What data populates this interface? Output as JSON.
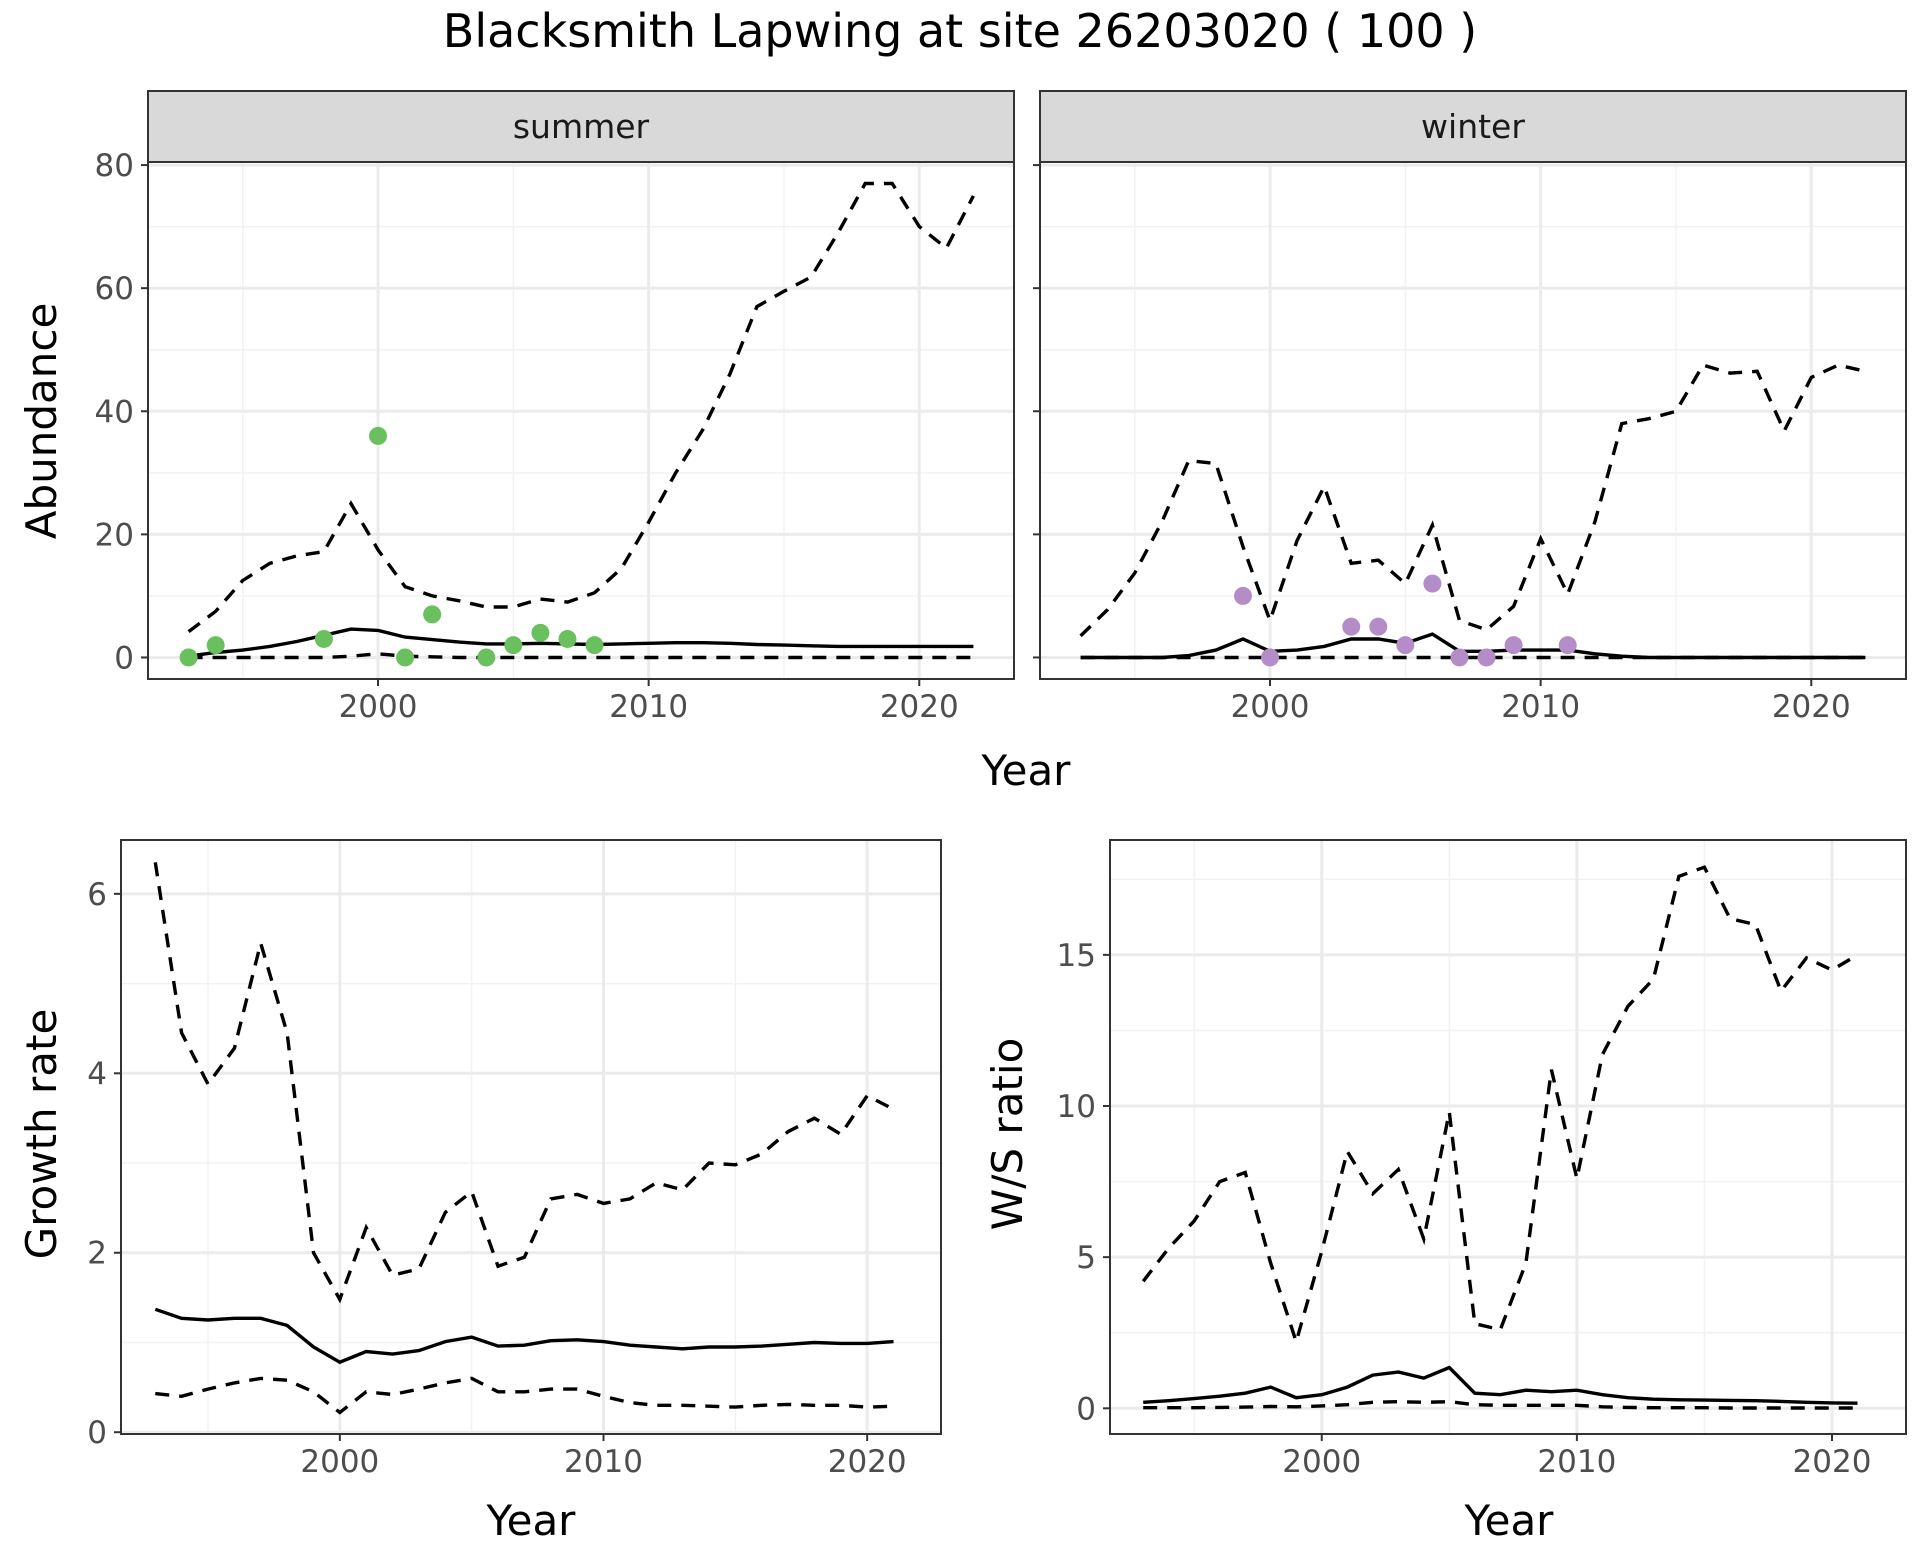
{
  "title": "Blacksmith Lapwing at site 26203020 ( 100 )",
  "colors": {
    "summer_points": "#6abf5e",
    "winter_points": "#b48cc8",
    "lines": "#000000"
  },
  "chart_data": [
    {
      "type": "line",
      "facet": "summer",
      "xlabel": "Year",
      "ylabel": "Abundance",
      "xlim": [
        1991.5,
        2023.5
      ],
      "ylim": [
        -3.5,
        80.5
      ],
      "xticks": [
        2000,
        2010,
        2020
      ],
      "yticks": [
        0,
        20,
        40,
        60,
        80
      ],
      "grid": true,
      "series": [
        {
          "style": "solid",
          "x": [
            1993,
            1994,
            1995,
            1996,
            1997,
            1998,
            1999,
            2000,
            2001,
            2002,
            2003,
            2004,
            2005,
            2006,
            2007,
            2008,
            2009,
            2010,
            2011,
            2012,
            2013,
            2014,
            2015,
            2016,
            2017,
            2018,
            2019,
            2020,
            2021,
            2022
          ],
          "values": [
            0.2,
            0.8,
            1.2,
            1.8,
            2.6,
            3.6,
            4.6,
            4.4,
            3.3,
            2.9,
            2.5,
            2.2,
            2.2,
            2.3,
            2.2,
            2.1,
            2.2,
            2.3,
            2.4,
            2.4,
            2.3,
            2.1,
            2.0,
            1.9,
            1.8,
            1.8,
            1.8,
            1.8,
            1.8,
            1.8
          ]
        },
        {
          "style": "dashed",
          "x": [
            1993,
            1994,
            1995,
            1996,
            1997,
            1998,
            1999,
            2000,
            2001,
            2002,
            2003,
            2004,
            2005,
            2006,
            2007,
            2008,
            2009,
            2010,
            2011,
            2012,
            2013,
            2014,
            2015,
            2016,
            2017,
            2018,
            2019,
            2020,
            2021,
            2022
          ],
          "values": [
            4.2,
            7.5,
            12.5,
            15.3,
            16.5,
            17.2,
            25.0,
            17.5,
            11.5,
            10.0,
            9.2,
            8.2,
            8.2,
            9.5,
            9.0,
            10.5,
            14.5,
            22.0,
            30.0,
            37.0,
            46.0,
            57.0,
            59.5,
            61.8,
            69.0,
            77.0,
            77.0,
            70.0,
            66.5,
            75.0
          ]
        },
        {
          "style": "dashed",
          "x": [
            1993,
            1994,
            1995,
            1996,
            1997,
            1998,
            1999,
            2000,
            2001,
            2002,
            2003,
            2004,
            2005,
            2006,
            2007,
            2008,
            2009,
            2010,
            2011,
            2012,
            2013,
            2014,
            2015,
            2016,
            2017,
            2018,
            2019,
            2020,
            2021,
            2022
          ],
          "values": [
            0,
            0,
            0,
            0,
            0,
            0,
            0.2,
            0.6,
            0.2,
            0.1,
            0,
            0,
            0,
            0,
            0,
            0,
            0,
            0,
            0,
            0,
            0,
            0,
            0,
            0,
            0,
            0,
            0,
            0,
            0,
            0
          ]
        }
      ],
      "points": {
        "x": [
          1993,
          1994,
          1998,
          2000,
          2001,
          2002,
          2004,
          2005,
          2006,
          2007,
          2008
        ],
        "values": [
          0,
          2,
          3,
          36,
          0,
          7,
          0,
          2,
          4,
          3,
          2
        ]
      }
    },
    {
      "type": "line",
      "facet": "winter",
      "xlabel": "Year",
      "ylabel": "Abundance",
      "xlim": [
        1991.5,
        2023.5
      ],
      "ylim": [
        -3.5,
        80.5
      ],
      "xticks": [
        2000,
        2010,
        2020
      ],
      "yticks": [
        0,
        20,
        40,
        60,
        80
      ],
      "grid": true,
      "series": [
        {
          "style": "solid",
          "x": [
            1993,
            1994,
            1995,
            1996,
            1997,
            1998,
            1999,
            2000,
            2001,
            2002,
            2003,
            2004,
            2005,
            2006,
            2007,
            2008,
            2009,
            2010,
            2011,
            2012,
            2013,
            2014,
            2015,
            2016,
            2017,
            2018,
            2019,
            2020,
            2021,
            2022
          ],
          "values": [
            0,
            0,
            0,
            0,
            0.3,
            1.2,
            3.0,
            1.0,
            1.2,
            1.8,
            3.0,
            3.0,
            2.3,
            3.8,
            1.0,
            1.0,
            1.2,
            1.2,
            1.2,
            0.6,
            0.2,
            0,
            0,
            0,
            0,
            0,
            0,
            0,
            0,
            0
          ]
        },
        {
          "style": "dashed",
          "x": [
            1993,
            1994,
            1995,
            1996,
            1997,
            1998,
            1999,
            2000,
            2001,
            2002,
            2003,
            2004,
            2005,
            2006,
            2007,
            2008,
            2009,
            2010,
            2011,
            2012,
            2013,
            2014,
            2015,
            2016,
            2017,
            2018,
            2019,
            2020,
            2021,
            2022
          ],
          "values": [
            3.5,
            7.8,
            13.7,
            22.0,
            32.0,
            31.5,
            18.0,
            6.0,
            19.0,
            27.8,
            15.3,
            15.8,
            12.0,
            21.5,
            6.0,
            4.5,
            8.3,
            19.3,
            10.3,
            22.0,
            38.0,
            38.8,
            40.0,
            47.5,
            46.2,
            46.5,
            36.8,
            45.5,
            47.5,
            46.5
          ]
        },
        {
          "style": "dashed",
          "x": [
            1993,
            1994,
            1995,
            1996,
            1997,
            1998,
            1999,
            2000,
            2001,
            2002,
            2003,
            2004,
            2005,
            2006,
            2007,
            2008,
            2009,
            2010,
            2011,
            2012,
            2013,
            2014,
            2015,
            2016,
            2017,
            2018,
            2019,
            2020,
            2021,
            2022
          ],
          "values": [
            0,
            0,
            0,
            0,
            0,
            0,
            0,
            0,
            0,
            0,
            0,
            0,
            0,
            0,
            0,
            0,
            0,
            0,
            0,
            0,
            0,
            0,
            0,
            0,
            0,
            0,
            0,
            0,
            0,
            0
          ]
        }
      ],
      "points": {
        "x": [
          1999,
          2000,
          2003,
          2004,
          2005,
          2006,
          2007,
          2008,
          2009,
          2011
        ],
        "values": [
          10,
          0,
          5,
          5,
          2,
          12,
          0,
          0,
          2,
          2
        ]
      }
    },
    {
      "type": "line",
      "xlabel": "Year",
      "ylabel": "Growth rate",
      "xlim": [
        1991.7,
        2022.8
      ],
      "ylim": [
        -0.02,
        6.6
      ],
      "xticks": [
        2000,
        2010,
        2020
      ],
      "yticks": [
        0,
        2,
        4,
        6
      ],
      "grid": true,
      "series": [
        {
          "style": "solid",
          "x": [
            1993,
            1994,
            1995,
            1996,
            1997,
            1998,
            1999,
            2000,
            2001,
            2002,
            2003,
            2004,
            2005,
            2006,
            2007,
            2008,
            2009,
            2010,
            2011,
            2012,
            2013,
            2014,
            2015,
            2016,
            2017,
            2018,
            2019,
            2020,
            2021
          ],
          "values": [
            1.37,
            1.27,
            1.25,
            1.27,
            1.27,
            1.19,
            0.95,
            0.78,
            0.9,
            0.87,
            0.91,
            1.01,
            1.06,
            0.96,
            0.97,
            1.02,
            1.03,
            1.01,
            0.97,
            0.95,
            0.93,
            0.95,
            0.95,
            0.96,
            0.98,
            1.0,
            0.99,
            0.99,
            1.01
          ]
        },
        {
          "style": "dashed",
          "x": [
            1993,
            1994,
            1995,
            1996,
            1997,
            1998,
            1999,
            2000,
            2001,
            2002,
            2003,
            2004,
            2005,
            2006,
            2007,
            2008,
            2009,
            2010,
            2011,
            2012,
            2013,
            2014,
            2015,
            2016,
            2017,
            2018,
            2019,
            2020,
            2021
          ],
          "values": [
            6.35,
            4.45,
            3.88,
            4.28,
            5.45,
            4.45,
            2.0,
            1.48,
            2.28,
            1.75,
            1.82,
            2.45,
            2.68,
            1.85,
            1.95,
            2.6,
            2.65,
            2.55,
            2.6,
            2.78,
            2.7,
            3.0,
            2.98,
            3.1,
            3.35,
            3.5,
            3.32,
            3.75,
            3.6
          ]
        },
        {
          "style": "dashed",
          "x": [
            1993,
            1994,
            1995,
            1996,
            1997,
            1998,
            1999,
            2000,
            2001,
            2002,
            2003,
            2004,
            2005,
            2006,
            2007,
            2008,
            2009,
            2010,
            2011,
            2012,
            2013,
            2014,
            2015,
            2016,
            2017,
            2018,
            2019,
            2020,
            2021
          ],
          "values": [
            0.43,
            0.4,
            0.48,
            0.55,
            0.6,
            0.58,
            0.45,
            0.22,
            0.45,
            0.42,
            0.48,
            0.55,
            0.6,
            0.45,
            0.45,
            0.48,
            0.48,
            0.4,
            0.33,
            0.3,
            0.3,
            0.29,
            0.28,
            0.3,
            0.31,
            0.3,
            0.3,
            0.28,
            0.29
          ]
        }
      ]
    },
    {
      "type": "line",
      "xlabel": "Year",
      "ylabel": "W/S ratio",
      "xlim": [
        1991.7,
        2022.9
      ],
      "ylim": [
        -0.85,
        18.8
      ],
      "xticks": [
        2000,
        2010,
        2020
      ],
      "yticks": [
        0,
        5,
        10,
        15
      ],
      "grid": true,
      "series": [
        {
          "style": "solid",
          "x": [
            1993,
            1994,
            1995,
            1996,
            1997,
            1998,
            1999,
            2000,
            2001,
            2002,
            2003,
            2004,
            2005,
            2006,
            2007,
            2008,
            2009,
            2010,
            2011,
            2012,
            2013,
            2014,
            2015,
            2016,
            2017,
            2018,
            2019,
            2020,
            2021
          ],
          "values": [
            0.2,
            0.25,
            0.32,
            0.4,
            0.5,
            0.7,
            0.35,
            0.45,
            0.7,
            1.1,
            1.2,
            1.0,
            1.35,
            0.5,
            0.45,
            0.6,
            0.55,
            0.6,
            0.45,
            0.35,
            0.3,
            0.28,
            0.27,
            0.26,
            0.25,
            0.23,
            0.2,
            0.18,
            0.17
          ]
        },
        {
          "style": "dashed",
          "x": [
            1993,
            1994,
            1995,
            1996,
            1997,
            1998,
            1999,
            2000,
            2001,
            2002,
            2003,
            2004,
            2005,
            2006,
            2007,
            2008,
            2009,
            2010,
            2011,
            2012,
            2013,
            2014,
            2015,
            2016,
            2017,
            2018,
            2019,
            2020,
            2021
          ],
          "values": [
            4.2,
            5.3,
            6.2,
            7.5,
            7.8,
            4.8,
            2.2,
            5.2,
            8.5,
            7.1,
            7.9,
            5.6,
            9.8,
            2.8,
            2.6,
            4.8,
            11.2,
            7.6,
            11.7,
            13.3,
            14.2,
            17.6,
            17.9,
            16.2,
            16.0,
            13.8,
            14.9,
            14.5,
            15.0
          ]
        },
        {
          "style": "dashed",
          "x": [
            1993,
            1994,
            1995,
            1996,
            1997,
            1998,
            1999,
            2000,
            2001,
            2002,
            2003,
            2004,
            2005,
            2006,
            2007,
            2008,
            2009,
            2010,
            2011,
            2012,
            2013,
            2014,
            2015,
            2016,
            2017,
            2018,
            2019,
            2020,
            2021
          ],
          "values": [
            0.02,
            0.02,
            0.02,
            0.03,
            0.04,
            0.06,
            0.05,
            0.08,
            0.12,
            0.2,
            0.22,
            0.2,
            0.22,
            0.12,
            0.1,
            0.1,
            0.1,
            0.1,
            0.05,
            0.03,
            0.02,
            0.02,
            0.02,
            0.01,
            0.01,
            0.01,
            0.01,
            0.01,
            0.01
          ]
        }
      ]
    }
  ]
}
